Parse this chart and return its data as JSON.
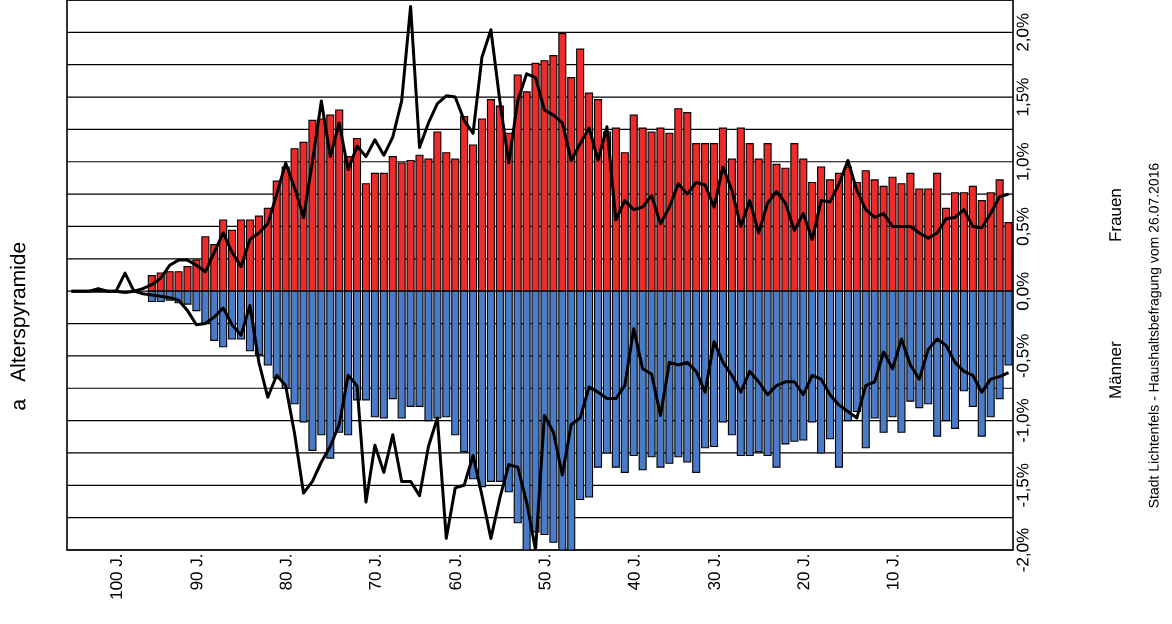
{
  "chart_data": {
    "type": "bar",
    "title": "Alterspyramide",
    "stacked": true,
    "grid": "y",
    "categories": [
      null,
      null,
      null,
      null,
      null,
      "100 J.",
      null,
      null,
      null,
      null,
      null,
      null,
      null,
      null,
      "90 J.",
      null,
      null,
      null,
      null,
      null,
      null,
      null,
      null,
      null,
      "80 J.",
      null,
      null,
      null,
      null,
      null,
      null,
      null,
      null,
      null,
      "70 J.",
      null,
      null,
      null,
      null,
      null,
      null,
      null,
      null,
      "60 J.",
      null,
      null,
      null,
      null,
      null,
      null,
      null,
      null,
      null,
      "50 J.",
      null,
      null,
      null,
      null,
      null,
      null,
      null,
      null,
      null,
      "40 J.",
      null,
      null,
      null,
      null,
      null,
      null,
      null,
      null,
      "30 J.",
      null,
      null,
      null,
      null,
      null,
      null,
      null,
      null,
      null,
      "20 J.",
      null,
      null,
      null,
      null,
      null,
      null,
      null,
      null,
      null,
      "10 J.",
      null,
      null,
      null,
      null,
      null,
      null,
      null,
      null,
      null,
      null,
      null,
      null,
      null
    ],
    "series": [
      {
        "name": "Frauen",
        "color": "#ee2b2b",
        "values": [
          null,
          null,
          null,
          null,
          null,
          null,
          null,
          null,
          null,
          0.12,
          0.14,
          0.15,
          0.15,
          0.19,
          0.24,
          0.42,
          0.36,
          0.55,
          0.47,
          0.55,
          0.55,
          0.58,
          0.64,
          0.85,
          0.96,
          1.1,
          1.15,
          1.32,
          1.33,
          1.36,
          1.4,
          1.04,
          1.18,
          0.83,
          0.91,
          0.91,
          1.04,
          0.99,
          1.01,
          1.05,
          1.02,
          1.23,
          1.07,
          1.02,
          1.35,
          1.13,
          1.33,
          1.48,
          1.43,
          1.22,
          1.67,
          1.54,
          1.76,
          1.78,
          1.82,
          1.99,
          1.65,
          1.87,
          1.53,
          1.48,
          1.23,
          1.26,
          1.07,
          1.36,
          1.26,
          1.23,
          1.26,
          1.22,
          1.41,
          1.38,
          1.14,
          1.14,
          1.14,
          1.26,
          1.02,
          1.26,
          1.14,
          1.02,
          1.14,
          0.98,
          0.95,
          1.14,
          1.02,
          0.84,
          0.96,
          0.86,
          0.91,
          0.96,
          0.84,
          0.93,
          0.86,
          0.81,
          0.88,
          0.83,
          0.91,
          0.79,
          0.79,
          0.91,
          0.64,
          0.76,
          0.76,
          0.81,
          0.7,
          0.76,
          0.86,
          0.53
        ]
      },
      {
        "name": "Männer",
        "color": "#4a7bc8",
        "values": [
          null,
          null,
          null,
          null,
          null,
          null,
          null,
          null,
          null,
          -0.08,
          -0.08,
          -0.07,
          -0.09,
          -0.1,
          -0.15,
          -0.25,
          -0.38,
          -0.43,
          -0.37,
          -0.37,
          -0.46,
          -0.49,
          -0.57,
          -0.67,
          -0.75,
          -0.87,
          -1.01,
          -1.23,
          -1.11,
          -1.29,
          -1.09,
          -1.11,
          -0.84,
          -0.84,
          -0.97,
          -0.98,
          -0.83,
          -0.98,
          -0.89,
          -0.89,
          -1.0,
          -0.98,
          -0.97,
          -1.11,
          -1.24,
          -1.45,
          -1.51,
          -1.47,
          -1.47,
          -1.55,
          -1.79,
          -2.0,
          -1.86,
          -1.88,
          -1.94,
          -2.0,
          -2.0,
          -1.61,
          -1.59,
          -1.36,
          -1.25,
          -1.36,
          -1.4,
          -1.27,
          -1.38,
          -1.28,
          -1.36,
          -1.33,
          -1.28,
          -1.32,
          -1.4,
          -1.21,
          -1.2,
          -1.01,
          -1.11,
          -1.27,
          -1.27,
          -1.24,
          -1.27,
          -1.36,
          -1.18,
          -1.16,
          -1.15,
          -1.01,
          -1.25,
          -1.14,
          -1.36,
          -1.0,
          -0.93,
          -1.21,
          -0.98,
          -1.09,
          -0.97,
          -1.09,
          -0.85,
          -0.9,
          -0.87,
          -1.12,
          -1.0,
          -1.06,
          -0.77,
          -0.89,
          -1.12,
          -0.97,
          -0.83,
          -0.57
        ]
      },
      {
        "type": "line",
        "color": "#000000",
        "values": [
          0,
          0,
          0,
          0.02,
          0,
          0,
          0.14,
          0,
          0.02,
          0.05,
          0.1,
          0.2,
          0.24,
          0.24,
          0.2,
          0.15,
          0.3,
          0.45,
          0.3,
          0.19,
          0.4,
          0.45,
          0.52,
          0.75,
          0.99,
          0.8,
          0.57,
          1.0,
          1.47,
          1.04,
          1.3,
          0.94,
          1.12,
          1.04,
          1.17,
          1.05,
          1.19,
          1.47,
          2.2,
          1.11,
          1.3,
          1.45,
          1.51,
          1.5,
          1.32,
          1.22,
          1.81,
          2.02,
          1.47,
          0.99,
          1.47,
          1.68,
          1.65,
          1.4,
          1.36,
          1.3,
          1.01,
          1.14,
          1.26,
          1.01,
          1.27,
          0.55,
          0.7,
          0.63,
          0.65,
          0.74,
          0.52,
          0.65,
          0.83,
          0.75,
          0.84,
          0.82,
          0.65,
          0.96,
          0.78,
          0.5,
          0.7,
          0.45,
          0.68,
          0.77,
          0.68,
          0.47,
          0.6,
          0.4,
          0.7,
          0.69,
          0.83,
          1.01,
          0.78,
          0.63,
          0.57,
          0.6,
          0.5,
          0.5,
          0.5,
          0.45,
          0.41,
          0.45,
          0.56,
          0.57,
          0.63,
          0.5,
          0.49,
          0.6,
          0.73,
          0.75
        ]
      },
      {
        "type": "line",
        "color": "#000000",
        "values": [
          0,
          0,
          0,
          0,
          0,
          0,
          -0.01,
          0,
          -0.02,
          -0.03,
          -0.04,
          -0.05,
          -0.07,
          -0.15,
          -0.26,
          -0.25,
          -0.2,
          -0.13,
          -0.26,
          -0.34,
          -0.11,
          -0.55,
          -0.82,
          -0.65,
          -0.73,
          -1.1,
          -1.56,
          -1.47,
          -1.32,
          -1.2,
          -1.03,
          -0.65,
          -0.73,
          -1.63,
          -1.19,
          -1.4,
          -1.11,
          -1.47,
          -1.47,
          -1.58,
          -1.2,
          -0.98,
          -1.91,
          -1.52,
          -1.5,
          -1.27,
          -1.58,
          -1.91,
          -1.6,
          -1.34,
          -1.36,
          -1.63,
          -2.0,
          -0.96,
          -1.09,
          -1.42,
          -1.03,
          -0.98,
          -0.74,
          -0.78,
          -0.83,
          -0.83,
          -0.73,
          -0.29,
          -0.6,
          -0.64,
          -0.96,
          -0.55,
          -0.57,
          -0.55,
          -0.62,
          -0.78,
          -0.39,
          -0.55,
          -0.65,
          -0.78,
          -0.62,
          -0.7,
          -0.8,
          -0.73,
          -0.7,
          -0.7,
          -0.8,
          -0.65,
          -0.68,
          -0.8,
          -0.88,
          -0.93,
          -0.98,
          -0.73,
          -0.7,
          -0.47,
          -0.6,
          -0.37,
          -0.57,
          -0.68,
          -0.45,
          -0.37,
          -0.42,
          -0.55,
          -0.62,
          -0.65,
          -0.78,
          -0.68,
          -0.66,
          -0.63
        ]
      }
    ],
    "ylim": [
      -2,
      2.25
    ],
    "yticks": [
      {
        "value": -2,
        "label": "-2,0%"
      },
      {
        "value": -1.75,
        "label": null
      },
      {
        "value": -1.5,
        "label": "-1,5%"
      },
      {
        "value": -1.25,
        "label": null
      },
      {
        "value": -1,
        "label": "-1,0%"
      },
      {
        "value": -0.75,
        "label": null
      },
      {
        "value": -0.5,
        "label": "-0,5%"
      },
      {
        "value": -0.25,
        "label": null
      },
      {
        "value": 0,
        "label": "0,0%"
      },
      {
        "value": 0.25,
        "label": null
      },
      {
        "value": 0.5,
        "label": "0,5%"
      },
      {
        "value": 0.75,
        "label": null
      },
      {
        "value": 1,
        "label": "1,0%"
      },
      {
        "value": 1.25,
        "label": null
      },
      {
        "value": 1.5,
        "label": "1,5%"
      },
      {
        "value": 1.75,
        "label": null
      },
      {
        "value": 2,
        "label": "2,0%"
      },
      {
        "value": 2.25,
        "label": null
      }
    ],
    "annotations": [
      "a",
      "Stadt Lichtenfels - Haushaltsbefragung vom 26.07.2016"
    ]
  }
}
